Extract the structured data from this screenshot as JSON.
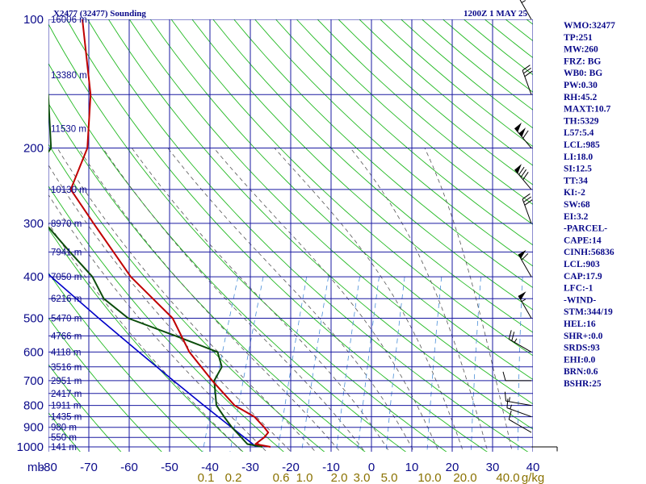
{
  "header": {
    "station": "X2477 (32477) Sounding",
    "valid": "1200Z  1 MAY 25"
  },
  "indices": [
    "WMO:32477",
    "TP:251",
    "MW:260",
    "FRZ: BG",
    "WB0: BG",
    "PW:0.30",
    "RH:45.2",
    "MAXT:10.7",
    "TH:5329",
    "L57:5.4",
    "LCL:985",
    "LI:18.0",
    "SI:12.5",
    "TT:34",
    "KI:-2",
    "SW:68",
    "EI:3.2",
    "-PARCEL-",
    "CAPE:14",
    "CINH:56836",
    "LCL:903",
    "CAP:17.9",
    "LFC:-1",
    "-WIND-",
    "STM:344/19",
    "HEL:16",
    "SHR+:0.0",
    "SRDS:93",
    "EHI:0.0",
    "BRN:0.6",
    "BSHR:25"
  ],
  "chart_data": {
    "type": "skew-t",
    "pressure_unit_label": "mb",
    "pressure_levels": [
      100,
      200,
      300,
      400,
      500,
      600,
      700,
      800,
      900,
      1000
    ],
    "pressure_labels": [
      "100",
      "200",
      "300",
      "400",
      "500",
      "600",
      "700",
      "800",
      "900",
      "1000"
    ],
    "height_labels": [
      {
        "p": 100,
        "text": "16006 m"
      },
      {
        "p": 135,
        "text": "13380 m"
      },
      {
        "p": 180,
        "text": "11530 m"
      },
      {
        "p": 250,
        "text": "10130 m"
      },
      {
        "p": 300,
        "text": "8970 m"
      },
      {
        "p": 350,
        "text": "7941 m"
      },
      {
        "p": 400,
        "text": "7050 m"
      },
      {
        "p": 450,
        "text": "6216 m"
      },
      {
        "p": 500,
        "text": "5470 m"
      },
      {
        "p": 550,
        "text": "4766 m"
      },
      {
        "p": 600,
        "text": "4118 m"
      },
      {
        "p": 650,
        "text": "3516 m"
      },
      {
        "p": 700,
        "text": "2951 m"
      },
      {
        "p": 750,
        "text": "2417 m"
      },
      {
        "p": 800,
        "text": "1911 m"
      },
      {
        "p": 850,
        "text": "1435 m"
      },
      {
        "p": 900,
        "text": "980 m"
      },
      {
        "p": 950,
        "text": "550 m"
      },
      {
        "p": 1000,
        "text": "141 m"
      }
    ],
    "temp_ticks": [
      -80,
      -70,
      -60,
      -50,
      -40,
      -30,
      -20,
      -10,
      0,
      10,
      20,
      30,
      40
    ],
    "temp_tick_labels": [
      "-80",
      "-70",
      "-60",
      "-50",
      "-40",
      "-30",
      "-20",
      "-10",
      "0",
      "10",
      "20",
      "30",
      "40"
    ],
    "mixing_ratio_labels": [
      "0.1",
      "0.2",
      "0.6",
      "1.0",
      "2.0",
      "3.0",
      "5.0",
      "10.0",
      "20.0",
      "40.0",
      "g/kg"
    ],
    "temperature_profile": [
      {
        "p": 1000,
        "t": -25.0
      },
      {
        "p": 985,
        "t": -29.0
      },
      {
        "p": 950,
        "t": -27.5
      },
      {
        "p": 925,
        "t": -27.0
      },
      {
        "p": 900,
        "t": -28.5
      },
      {
        "p": 850,
        "t": -32.0
      },
      {
        "p": 800,
        "t": -38.0
      },
      {
        "p": 700,
        "t": -46.0
      },
      {
        "p": 600,
        "t": -54.5
      },
      {
        "p": 500,
        "t": -62.0
      },
      {
        "p": 400,
        "t": -76.5
      },
      {
        "p": 300,
        "t": -91.0
      },
      {
        "p": 250,
        "t": -100.0
      },
      {
        "p": 200,
        "t": -100.0
      },
      {
        "p": 150,
        "t": -104.5
      },
      {
        "p": 100,
        "t": -114.0
      }
    ],
    "dewpoint_profile": [
      {
        "p": 1000,
        "t": -27.0
      },
      {
        "p": 985,
        "t": -31.0
      },
      {
        "p": 900,
        "t": -36.5
      },
      {
        "p": 850,
        "t": -39.5
      },
      {
        "p": 800,
        "t": -42.5
      },
      {
        "p": 700,
        "t": -45.5
      },
      {
        "p": 650,
        "t": -45.0
      },
      {
        "p": 600,
        "t": -47.5
      },
      {
        "p": 550,
        "t": -59.5
      },
      {
        "p": 500,
        "t": -73.0
      },
      {
        "p": 450,
        "t": -81.0
      },
      {
        "p": 400,
        "t": -86.0
      },
      {
        "p": 350,
        "t": -94.0
      },
      {
        "p": 300,
        "t": -103.0
      },
      {
        "p": 250,
        "t": -112.0
      },
      {
        "p": 200,
        "t": -109.0
      },
      {
        "p": 150,
        "t": -115.0
      },
      {
        "p": 100,
        "t": -135.0
      }
    ],
    "parcel_path": [
      {
        "p": 1000,
        "t": -28.5
      },
      {
        "p": 900,
        "t": -36.6
      },
      {
        "p": 800,
        "t": -45.6
      },
      {
        "p": 700,
        "t": -55.6
      },
      {
        "p": 600,
        "t": -67.0
      },
      {
        "p": 500,
        "t": -80.3
      },
      {
        "p": 400,
        "t": -96.2
      },
      {
        "p": 300,
        "t": -115.8
      }
    ],
    "wind_barbs": [
      {
        "p": 1000,
        "dir": 90,
        "spd": 5
      },
      {
        "p": 925,
        "dir": 300,
        "spd": 10
      },
      {
        "p": 850,
        "dir": 290,
        "spd": 15
      },
      {
        "p": 800,
        "dir": 280,
        "spd": 15
      },
      {
        "p": 700,
        "dir": 270,
        "spd": 10
      },
      {
        "p": 600,
        "dir": 300,
        "spd": 25
      },
      {
        "p": 500,
        "dir": 330,
        "spd": 55
      },
      {
        "p": 400,
        "dir": 330,
        "spd": 60
      },
      {
        "p": 300,
        "dir": 340,
        "spd": 30
      },
      {
        "p": 250,
        "dir": 320,
        "spd": 80
      },
      {
        "p": 200,
        "dir": 320,
        "spd": 110
      },
      {
        "p": 150,
        "dir": 340,
        "spd": 30
      },
      {
        "p": 100,
        "dir": 330,
        "spd": 25
      }
    ],
    "colors": {
      "grid": "#1a1aa0",
      "dry_adiabat": "#22b922",
      "moist_adiabat": "#555555",
      "mixing_ratio": "#4a8fd8",
      "temperature": "#c00000",
      "dewpoint": "#0b4d0b",
      "parcel": "#0000c8",
      "barb": "#000000"
    }
  }
}
